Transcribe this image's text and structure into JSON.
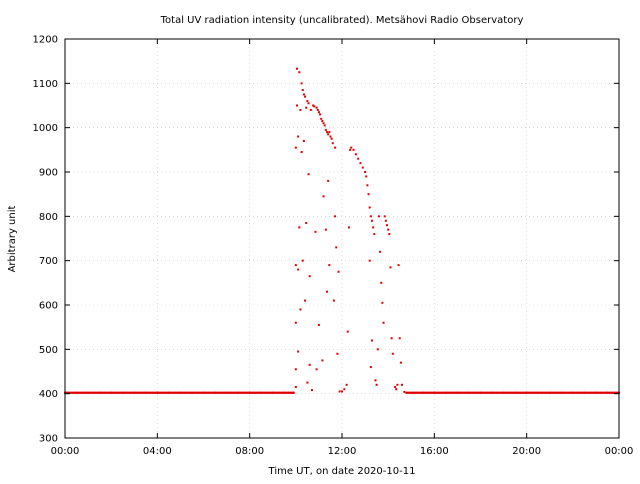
{
  "chart_data": {
    "type": "scatter",
    "title": "Total UV radiation intensity (uncalibrated). Metsähovi Radio Observatory",
    "xlabel": "Time UT, on date 2020-10-11",
    "ylabel": "Arbitrary unit",
    "xlim": [
      0,
      24
    ],
    "ylim": [
      300,
      1200
    ],
    "x_ticks": [
      {
        "value": 0,
        "label": "00:00"
      },
      {
        "value": 4,
        "label": "04:00"
      },
      {
        "value": 8,
        "label": "08:00"
      },
      {
        "value": 12,
        "label": "12:00"
      },
      {
        "value": 16,
        "label": "16:00"
      },
      {
        "value": 20,
        "label": "20:00"
      },
      {
        "value": 24,
        "label": "00:00"
      }
    ],
    "y_ticks": [
      {
        "value": 300,
        "label": "300"
      },
      {
        "value": 400,
        "label": "400"
      },
      {
        "value": 500,
        "label": "500"
      },
      {
        "value": 600,
        "label": "600"
      },
      {
        "value": 700,
        "label": "700"
      },
      {
        "value": 800,
        "label": "800"
      },
      {
        "value": 900,
        "label": "900"
      },
      {
        "value": 1000,
        "label": "1000"
      },
      {
        "value": 1100,
        "label": "1100"
      },
      {
        "value": 1200,
        "label": "1200"
      }
    ],
    "grid": true,
    "series": [
      {
        "color": "#e00000",
        "points": [
          [
            0.0,
            402
          ],
          [
            0.5,
            402
          ],
          [
            1.0,
            402
          ],
          [
            1.5,
            402
          ],
          [
            2.0,
            402
          ],
          [
            2.5,
            402
          ],
          [
            3.0,
            402
          ],
          [
            3.5,
            402
          ],
          [
            4.0,
            402
          ],
          [
            4.5,
            402
          ],
          [
            5.0,
            402
          ],
          [
            5.5,
            402
          ],
          [
            6.0,
            402
          ],
          [
            6.5,
            402
          ],
          [
            7.0,
            402
          ],
          [
            7.5,
            402
          ],
          [
            8.0,
            402
          ],
          [
            8.5,
            402
          ],
          [
            9.0,
            402
          ],
          [
            9.5,
            402
          ],
          [
            9.9,
            402
          ],
          [
            10.0,
            415
          ],
          [
            10.0,
            455
          ],
          [
            10.0,
            560
          ],
          [
            10.0,
            690
          ],
          [
            10.0,
            955
          ],
          [
            10.05,
            1050
          ],
          [
            10.05,
            1133
          ],
          [
            10.1,
            980
          ],
          [
            10.1,
            680
          ],
          [
            10.1,
            495
          ],
          [
            10.15,
            1125
          ],
          [
            10.15,
            775
          ],
          [
            10.2,
            1040
          ],
          [
            10.2,
            590
          ],
          [
            10.25,
            1100
          ],
          [
            10.25,
            945
          ],
          [
            10.3,
            1085
          ],
          [
            10.3,
            700
          ],
          [
            10.35,
            1075
          ],
          [
            10.35,
            970
          ],
          [
            10.4,
            1070
          ],
          [
            10.4,
            610
          ],
          [
            10.45,
            1045
          ],
          [
            10.45,
            785
          ],
          [
            10.5,
            1060
          ],
          [
            10.5,
            425
          ],
          [
            10.55,
            1055
          ],
          [
            10.55,
            895
          ],
          [
            10.6,
            665
          ],
          [
            10.6,
            465
          ],
          [
            10.65,
            1040
          ],
          [
            10.7,
            408
          ],
          [
            10.75,
            1050
          ],
          [
            10.8,
            1048
          ],
          [
            10.85,
            765
          ],
          [
            10.9,
            1045
          ],
          [
            10.9,
            455
          ],
          [
            10.95,
            1040
          ],
          [
            11.0,
            1035
          ],
          [
            11.0,
            555
          ],
          [
            11.05,
            1030
          ],
          [
            11.1,
            1020
          ],
          [
            11.15,
            1015
          ],
          [
            11.15,
            475
          ],
          [
            11.2,
            1010
          ],
          [
            11.2,
            845
          ],
          [
            11.25,
            1005
          ],
          [
            11.3,
            995
          ],
          [
            11.3,
            770
          ],
          [
            11.35,
            990
          ],
          [
            11.35,
            630
          ],
          [
            11.4,
            985
          ],
          [
            11.4,
            880
          ],
          [
            11.45,
            990
          ],
          [
            11.45,
            690
          ],
          [
            11.5,
            980
          ],
          [
            11.55,
            975
          ],
          [
            11.6,
            965
          ],
          [
            11.65,
            610
          ],
          [
            11.7,
            955
          ],
          [
            11.7,
            800
          ],
          [
            11.75,
            730
          ],
          [
            11.8,
            490
          ],
          [
            11.85,
            675
          ],
          [
            11.9,
            405
          ],
          [
            12.0,
            405
          ],
          [
            12.1,
            410
          ],
          [
            12.2,
            420
          ],
          [
            12.25,
            540
          ],
          [
            12.3,
            775
          ],
          [
            12.35,
            950
          ],
          [
            12.4,
            955
          ],
          [
            12.5,
            950
          ],
          [
            12.6,
            940
          ],
          [
            12.7,
            930
          ],
          [
            12.8,
            920
          ],
          [
            12.9,
            910
          ],
          [
            13.0,
            900
          ],
          [
            13.05,
            890
          ],
          [
            13.1,
            870
          ],
          [
            13.15,
            850
          ],
          [
            13.2,
            820
          ],
          [
            13.2,
            700
          ],
          [
            13.25,
            800
          ],
          [
            13.25,
            460
          ],
          [
            13.3,
            790
          ],
          [
            13.3,
            520
          ],
          [
            13.35,
            775
          ],
          [
            13.4,
            760
          ],
          [
            13.45,
            430
          ],
          [
            13.5,
            420
          ],
          [
            13.55,
            500
          ],
          [
            13.6,
            800
          ],
          [
            13.65,
            720
          ],
          [
            13.7,
            650
          ],
          [
            13.75,
            605
          ],
          [
            13.8,
            560
          ],
          [
            13.85,
            800
          ],
          [
            13.9,
            790
          ],
          [
            13.95,
            780
          ],
          [
            14.0,
            770
          ],
          [
            14.05,
            760
          ],
          [
            14.1,
            685
          ],
          [
            14.15,
            525
          ],
          [
            14.2,
            490
          ],
          [
            14.3,
            415
          ],
          [
            14.35,
            410
          ],
          [
            14.4,
            420
          ],
          [
            14.45,
            690
          ],
          [
            14.5,
            525
          ],
          [
            14.55,
            470
          ],
          [
            14.6,
            420
          ],
          [
            14.7,
            404
          ],
          [
            15.0,
            402
          ],
          [
            15.5,
            402
          ],
          [
            16.0,
            402
          ],
          [
            16.5,
            402
          ],
          [
            17.0,
            402
          ],
          [
            17.5,
            402
          ],
          [
            18.0,
            402
          ],
          [
            18.5,
            402
          ],
          [
            19.0,
            402
          ],
          [
            19.5,
            402
          ],
          [
            20.0,
            402
          ],
          [
            20.5,
            402
          ],
          [
            21.0,
            402
          ],
          [
            21.5,
            402
          ],
          [
            22.0,
            402
          ],
          [
            22.5,
            402
          ],
          [
            23.0,
            402
          ],
          [
            23.5,
            402
          ],
          [
            24.0,
            402
          ]
        ]
      }
    ]
  }
}
